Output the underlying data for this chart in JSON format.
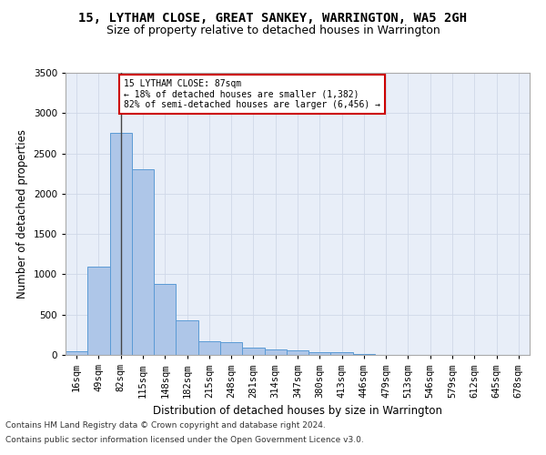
{
  "title1": "15, LYTHAM CLOSE, GREAT SANKEY, WARRINGTON, WA5 2GH",
  "title2": "Size of property relative to detached houses in Warrington",
  "xlabel": "Distribution of detached houses by size in Warrington",
  "ylabel": "Number of detached properties",
  "footer1": "Contains HM Land Registry data © Crown copyright and database right 2024.",
  "footer2": "Contains public sector information licensed under the Open Government Licence v3.0.",
  "annotation_line1": "15 LYTHAM CLOSE: 87sqm",
  "annotation_line2": "← 18% of detached houses are smaller (1,382)",
  "annotation_line3": "82% of semi-detached houses are larger (6,456) →",
  "bar_values": [
    50,
    1100,
    2750,
    2300,
    880,
    430,
    170,
    160,
    90,
    70,
    55,
    35,
    30,
    10,
    5,
    3,
    2,
    1,
    0,
    0,
    0
  ],
  "bin_labels": [
    "16sqm",
    "49sqm",
    "82sqm",
    "115sqm",
    "148sqm",
    "182sqm",
    "215sqm",
    "248sqm",
    "281sqm",
    "314sqm",
    "347sqm",
    "380sqm",
    "413sqm",
    "446sqm",
    "479sqm",
    "513sqm",
    "546sqm",
    "579sqm",
    "612sqm",
    "645sqm",
    "678sqm"
  ],
  "bar_color": "#aec6e8",
  "bar_edge_color": "#5b9bd5",
  "property_line_x": 2,
  "ylim": [
    0,
    3500
  ],
  "yticks": [
    0,
    500,
    1000,
    1500,
    2000,
    2500,
    3000,
    3500
  ],
  "grid_color": "#d0d8e8",
  "bg_color": "#e8eef8",
  "annotation_box_color": "#ffffff",
  "annotation_box_edge": "#cc0000",
  "title1_fontsize": 10,
  "title2_fontsize": 9,
  "xlabel_fontsize": 8.5,
  "ylabel_fontsize": 8.5,
  "tick_fontsize": 7.5,
  "footer_fontsize": 6.5
}
